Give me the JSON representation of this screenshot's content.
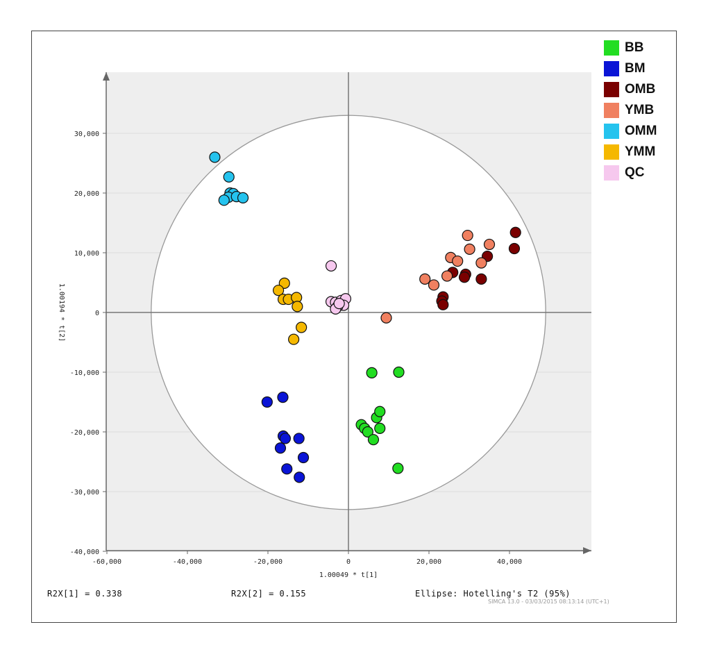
{
  "chart_data": {
    "type": "scatter",
    "title": "",
    "xlabel": "1.00049 * t[1]",
    "ylabel": "1.00194 * t[2]",
    "xlim": [
      -60000,
      60000
    ],
    "ylim": [
      -40000,
      40000
    ],
    "x_ticks": [
      -60000,
      -40000,
      -20000,
      0,
      20000,
      40000
    ],
    "y_ticks": [
      -40000,
      -30000,
      -20000,
      -10000,
      0,
      10000,
      20000,
      30000
    ],
    "x_tick_labels": [
      "-60,000",
      "-40,000",
      "-20,000",
      "0",
      "20,000",
      "40,000"
    ],
    "y_tick_labels": [
      "-40,000",
      "-30,000",
      "-20,000",
      "-10,000",
      "0",
      "10,000",
      "20,000",
      "30,000"
    ],
    "ellipse": {
      "rx": 49000,
      "ry": 33000,
      "label": "Ellipse: Hotelling's T2 (95%)"
    },
    "legend_position": "top-right",
    "series": [
      {
        "name": "BB",
        "color": "#22dd22",
        "points": [
          [
            5800,
            -10100
          ],
          [
            12500,
            -10000
          ],
          [
            3200,
            -18800
          ],
          [
            4000,
            -19400
          ],
          [
            4800,
            -20000
          ],
          [
            6200,
            -21300
          ],
          [
            7000,
            -17600
          ],
          [
            7800,
            -16600
          ],
          [
            7800,
            -19400
          ],
          [
            12300,
            -26100
          ]
        ]
      },
      {
        "name": "BM",
        "color": "#0a14d6",
        "points": [
          [
            -20200,
            -15000
          ],
          [
            -16300,
            -14200
          ],
          [
            -16200,
            -20700
          ],
          [
            -15700,
            -21100
          ],
          [
            -12300,
            -21100
          ],
          [
            -16900,
            -22700
          ],
          [
            -15300,
            -26200
          ],
          [
            -11200,
            -24300
          ],
          [
            -12200,
            -27600
          ]
        ]
      },
      {
        "name": "OMB",
        "color": "#7a0000",
        "points": [
          [
            41500,
            13400
          ],
          [
            41200,
            10700
          ],
          [
            34500,
            9400
          ],
          [
            29100,
            6400
          ],
          [
            28800,
            5900
          ],
          [
            33000,
            5600
          ],
          [
            25900,
            6700
          ],
          [
            23500,
            2600
          ],
          [
            23200,
            1900
          ],
          [
            23500,
            1300
          ]
        ]
      },
      {
        "name": "YMB",
        "color": "#f08060",
        "points": [
          [
            29600,
            12900
          ],
          [
            35000,
            11400
          ],
          [
            30100,
            10600
          ],
          [
            25400,
            9200
          ],
          [
            27100,
            8600
          ],
          [
            33000,
            8300
          ],
          [
            24500,
            6100
          ],
          [
            19000,
            5600
          ],
          [
            21200,
            4600
          ],
          [
            9400,
            -900
          ]
        ]
      },
      {
        "name": "OMM",
        "color": "#25c3ee",
        "points": [
          [
            -33200,
            26000
          ],
          [
            -29700,
            22700
          ],
          [
            -29400,
            20000
          ],
          [
            -28600,
            19900
          ],
          [
            -29800,
            19300
          ],
          [
            -27800,
            19400
          ],
          [
            -26200,
            19200
          ],
          [
            -30900,
            18800
          ]
        ]
      },
      {
        "name": "YMM",
        "color": "#f5b800",
        "points": [
          [
            -15900,
            4900
          ],
          [
            -17400,
            3700
          ],
          [
            -16200,
            2200
          ],
          [
            -14900,
            2200
          ],
          [
            -12900,
            2500
          ],
          [
            -12700,
            1000
          ],
          [
            -11700,
            -2500
          ],
          [
            -13600,
            -4500
          ]
        ]
      },
      {
        "name": "QC",
        "color": "#f6c8ee",
        "points": [
          [
            -4300,
            7800
          ],
          [
            -4300,
            1800
          ],
          [
            -3200,
            1700
          ],
          [
            -1800,
            2000
          ],
          [
            -700,
            2300
          ],
          [
            -1200,
            1200
          ],
          [
            -2700,
            1000
          ],
          [
            -3200,
            600
          ],
          [
            -2300,
            1500
          ]
        ]
      }
    ],
    "footer": {
      "r2x1": "R2X[1] = 0.338",
      "r2x2": "R2X[2] = 0.155",
      "ellipse_label": "Ellipse: Hotelling's T2 (95%)"
    },
    "watermark": "SIMCA 13.0 - 03/03/2015 08:13:14 (UTC+1)"
  }
}
